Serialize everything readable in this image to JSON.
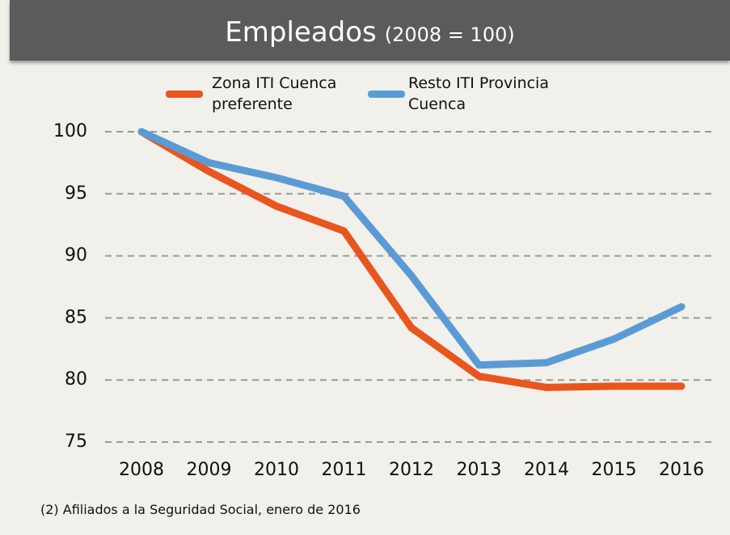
{
  "chart_data": {
    "type": "line",
    "title": "Empleados",
    "subtitle": "(2008 = 100)",
    "note": "(2) Afiliados a la Seguridad Social, enero de 2016",
    "categories": [
      "2008",
      "2009",
      "2010",
      "2011",
      "2012",
      "2013",
      "2014",
      "2015",
      "2016"
    ],
    "series": [
      {
        "name": "Zona ITI Cuenca preferente",
        "color": "#e8561e",
        "values": [
          100,
          96.8,
          94.0,
          92.0,
          84.2,
          80.3,
          79.4,
          79.5,
          79.5
        ]
      },
      {
        "name": "Resto ITI Provincia Cuenca",
        "color": "#5b9bd5",
        "values": [
          100,
          97.5,
          96.3,
          94.8,
          88.4,
          81.2,
          81.4,
          83.3,
          85.9
        ]
      }
    ],
    "ylim": [
      75,
      100
    ],
    "yticks": [
      75,
      80,
      85,
      90,
      95,
      100
    ],
    "grid": true,
    "legend": "top"
  }
}
